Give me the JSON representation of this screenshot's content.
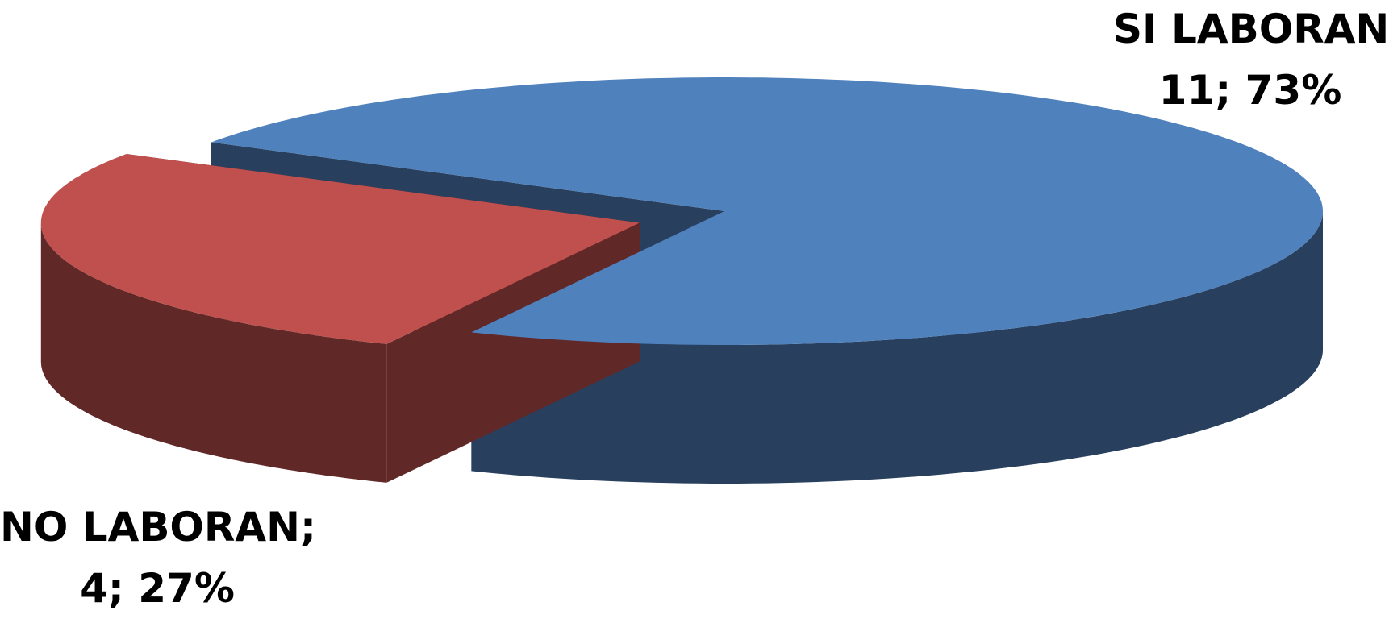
{
  "chart_data": {
    "type": "pie",
    "style": "3d-exploded",
    "slices": [
      {
        "name": "SI LABORAN",
        "value": 11,
        "percent": "73%",
        "label_line1": "SI LABORAN;",
        "label_line2": "11; 73%",
        "top_color": "#4F81BD",
        "side_color": "#283F5E",
        "exploded": false
      },
      {
        "name": "NO LABORAN",
        "value": 4,
        "percent": "27%",
        "label_line1": "NO LABORAN;",
        "label_line2": "4; 27%",
        "top_color": "#C0504D",
        "side_color": "#612828",
        "exploded": true
      }
    ],
    "legend": "none",
    "title": ""
  }
}
